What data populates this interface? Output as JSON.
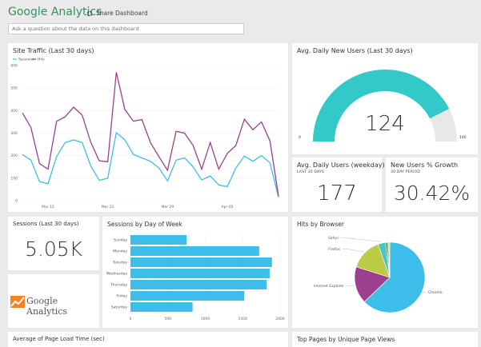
{
  "header": {
    "title": "Google Analytics",
    "share_label": "Share Dashboard",
    "share_icon": "share-icon",
    "search_placeholder": "Ask a question about the data on this dashboard"
  },
  "tiles": {
    "traffic_title": "Site Traffic (Last 30 days)",
    "gauge_title": "Avg. Daily New Users (Last 30 days)",
    "gauge_value": "124",
    "gauge_min": "0",
    "gauge_max": "146",
    "daily_users_title": "Avg. Daily Users (weekday)",
    "daily_users_sub": "LAST 30 DAYS",
    "daily_users_value": "177",
    "growth_title": "New Users % Growth",
    "growth_sub": "30 DAY PERIOD",
    "growth_value": "30.42%",
    "sessions_title": "Sessions (Last 30 days)",
    "sessions_value": "5.05K",
    "logo_text": "Google Analytics",
    "dow_title": "Sessions by Day of Week",
    "browser_title": "Hits by Browser",
    "load_title": "Average of Page Load Time (sec)",
    "pages_title": "Top Pages by Unique Page Views"
  },
  "colors": {
    "sessions": "#3dbde9",
    "hits": "#9c3f8e",
    "gauge": "#33c9c9",
    "gauge_bg": "#e8e8e8",
    "bar": "#3dbde9",
    "accent": "#3a8f5c"
  },
  "chart_data": [
    {
      "type": "line",
      "title": "Site Traffic (Last 30 days)",
      "ylim": [
        0,
        600
      ],
      "yticks": [
        0,
        100,
        200,
        300,
        400,
        500,
        600
      ],
      "xticks": [
        "Mar 15",
        "Mar 22",
        "Mar 29",
        "Apr 05"
      ],
      "x_start": "Mar 12",
      "x_end": "Apr 11",
      "legend": "top-left",
      "grid": true,
      "series": [
        {
          "name": "Sessions",
          "color": "#3dbde9",
          "values": [
            205,
            180,
            85,
            75,
            195,
            258,
            270,
            258,
            155,
            90,
            100,
            302,
            270,
            205,
            190,
            175,
            145,
            88,
            180,
            190,
            150,
            92,
            110,
            70,
            62,
            145,
            198,
            175,
            200,
            168,
            15
          ]
        },
        {
          "name": "Hits",
          "color": "#9c3f8e",
          "values": [
            390,
            325,
            165,
            140,
            352,
            372,
            415,
            380,
            260,
            177,
            173,
            570,
            405,
            353,
            360,
            258,
            195,
            135,
            308,
            300,
            245,
            140,
            258,
            140,
            210,
            245,
            362,
            315,
            350,
            265,
            20
          ]
        }
      ]
    },
    {
      "type": "bar",
      "orientation": "horizontal",
      "title": "Sessions by Day of Week",
      "categories": [
        "Sunday",
        "Monday",
        "Tuesday",
        "Wednesday",
        "Thursday",
        "Friday",
        "Saturday"
      ],
      "values": [
        750,
        1720,
        1890,
        1860,
        1820,
        1520,
        830
      ],
      "xlim": [
        0,
        2000
      ],
      "xticks": [
        0,
        500,
        1000,
        1500,
        2000
      ],
      "grid": true
    },
    {
      "type": "pie",
      "title": "Hits by Browser",
      "slices": [
        {
          "label": "Chrome",
          "value": 62.8,
          "color": "#3dbde9"
        },
        {
          "label": "Internet Explorer",
          "value": 17.1,
          "color": "#9c3f8e"
        },
        {
          "label": "Firefox",
          "value": 14.7,
          "color": "#bccb45"
        },
        {
          "label": "Safari",
          "value": 3.3,
          "color": "#4fc1c0"
        },
        {
          "label": "",
          "value": 0.8,
          "color": "#2a7a8c"
        },
        {
          "label": "",
          "value": 0.7,
          "color": "#7aa83a"
        },
        {
          "label": "",
          "value": 0.6,
          "color": "#d0d8a0"
        }
      ]
    },
    {
      "type": "gauge",
      "title": "Avg. Daily New Users (Last 30 days)",
      "value": 124,
      "min": 0,
      "max": 146
    }
  ]
}
